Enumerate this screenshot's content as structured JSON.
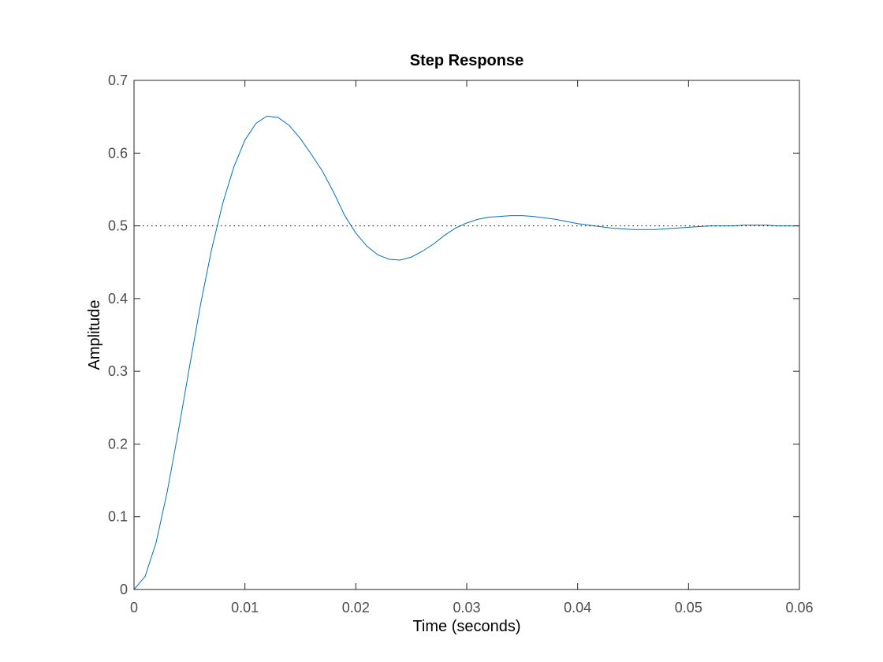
{
  "chart_data": {
    "type": "line",
    "title": "Step Response",
    "xlabel": "Time (seconds)",
    "ylabel": "Amplitude",
    "xlim": [
      0,
      0.06
    ],
    "ylim": [
      0,
      0.7
    ],
    "x_ticks": [
      0,
      0.01,
      0.02,
      0.03,
      0.04,
      0.05,
      0.06
    ],
    "x_tick_labels": [
      "0",
      "0.01",
      "0.02",
      "0.03",
      "0.04",
      "0.05",
      "0.06"
    ],
    "y_ticks": [
      0,
      0.1,
      0.2,
      0.3,
      0.4,
      0.5,
      0.6,
      0.7
    ],
    "y_tick_labels": [
      "0",
      "0.1",
      "0.2",
      "0.3",
      "0.4",
      "0.5",
      "0.6",
      "0.7"
    ],
    "grid": false,
    "box": true,
    "series": [
      {
        "color": "#0072bd",
        "style": "solid",
        "x": [
          0,
          0.001,
          0.002,
          0.003,
          0.004,
          0.005,
          0.006,
          0.007,
          0.008,
          0.009,
          0.01,
          0.011,
          0.012,
          0.013,
          0.014,
          0.015,
          0.016,
          0.017,
          0.018,
          0.019,
          0.02,
          0.021,
          0.022,
          0.023,
          0.024,
          0.025,
          0.026,
          0.027,
          0.028,
          0.029,
          0.03,
          0.031,
          0.032,
          0.033,
          0.034,
          0.035,
          0.036,
          0.037,
          0.038,
          0.039,
          0.04,
          0.041,
          0.042,
          0.043,
          0.044,
          0.045,
          0.046,
          0.047,
          0.048,
          0.049,
          0.05,
          0.051,
          0.052,
          0.053,
          0.054,
          0.055,
          0.056,
          0.057,
          0.058,
          0.059,
          0.06
        ],
        "y": [
          0,
          0.018,
          0.065,
          0.135,
          0.218,
          0.306,
          0.392,
          0.468,
          0.531,
          0.581,
          0.618,
          0.641,
          0.651,
          0.649,
          0.638,
          0.62,
          0.598,
          0.575,
          0.546,
          0.514,
          0.49,
          0.472,
          0.46,
          0.454,
          0.453,
          0.457,
          0.465,
          0.475,
          0.487,
          0.497,
          0.504,
          0.509,
          0.512,
          0.513,
          0.514,
          0.514,
          0.513,
          0.511,
          0.509,
          0.506,
          0.503,
          0.501,
          0.499,
          0.497,
          0.496,
          0.495,
          0.495,
          0.495,
          0.496,
          0.497,
          0.498,
          0.499,
          0.5,
          0.5,
          0.5,
          0.501,
          0.501,
          0.501,
          0.5,
          0.5,
          0.5
        ]
      },
      {
        "color": "#000000",
        "style": "dotted",
        "x": [
          0,
          0.06
        ],
        "y": [
          0.5,
          0.5
        ]
      }
    ]
  }
}
